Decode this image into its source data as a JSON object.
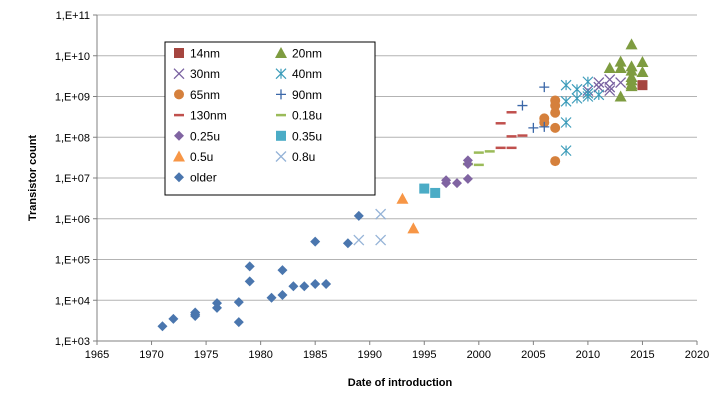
{
  "chart_data": {
    "type": "scatter",
    "xlabel": "Date of introduction",
    "ylabel": "Transistor count",
    "x_scale": "linear",
    "y_scale": "log",
    "xlim": [
      1965,
      2020
    ],
    "ylim": [
      1000,
      100000000000
    ],
    "x_ticks": [
      "1965",
      "1970",
      "1975",
      "1980",
      "1985",
      "1990",
      "1995",
      "2000",
      "2005",
      "2010",
      "2015",
      "2020"
    ],
    "y_ticks": [
      "1,E+03",
      "1,E+04",
      "1,E+05",
      "1,E+06",
      "1,E+07",
      "1,E+08",
      "1,E+09",
      "1,E+10",
      "1,E+11"
    ],
    "grid": "horizontal",
    "legend_position": "top-left",
    "series": [
      {
        "name": "14nm",
        "marker": "square",
        "color": "#A5453F",
        "points": [
          [
            2015,
            1900000000
          ]
        ]
      },
      {
        "name": "20nm",
        "marker": "triangle",
        "color": "#7E9C40",
        "points": [
          [
            2012,
            5000000000
          ],
          [
            2013,
            7200000000
          ],
          [
            2013,
            5000000000
          ],
          [
            2013,
            1000000000
          ],
          [
            2014,
            19000000000
          ],
          [
            2014,
            5500000000
          ],
          [
            2014,
            4300000000
          ],
          [
            2014,
            3000000000
          ],
          [
            2014,
            2500000000
          ],
          [
            2014,
            2000000000
          ],
          [
            2014,
            1800000000
          ],
          [
            2015,
            7000000000
          ],
          [
            2015,
            4000000000
          ]
        ]
      },
      {
        "name": "30nm",
        "marker": "x",
        "color": "#7860A0",
        "points": [
          [
            2010,
            1400000000
          ],
          [
            2011,
            2200000000
          ],
          [
            2011,
            1700000000
          ],
          [
            2012,
            2600000000
          ],
          [
            2012,
            1700000000
          ],
          [
            2012,
            1400000000
          ],
          [
            2013,
            2200000000
          ]
        ]
      },
      {
        "name": "40nm",
        "marker": "asterisk",
        "color": "#3C9CBA",
        "points": [
          [
            2008,
            1900000000
          ],
          [
            2008,
            760000000
          ],
          [
            2008,
            230000000
          ],
          [
            2008,
            47000000
          ],
          [
            2009,
            900000000
          ],
          [
            2009,
            1500000000
          ],
          [
            2010,
            2300000000
          ],
          [
            2010,
            1200000000
          ],
          [
            2010,
            1000000000
          ],
          [
            2011,
            1100000000
          ]
        ]
      },
      {
        "name": "65nm",
        "marker": "circle",
        "color": "#D5803C",
        "points": [
          [
            2006,
            290000000
          ],
          [
            2006,
            230000000
          ],
          [
            2007,
            800000000
          ],
          [
            2007,
            600000000
          ],
          [
            2007,
            400000000
          ],
          [
            2007,
            170000000
          ],
          [
            2007,
            26000000
          ]
        ]
      },
      {
        "name": "90nm",
        "marker": "plus",
        "color": "#3A67A8",
        "points": [
          [
            2004,
            600000000
          ],
          [
            2005,
            170000000
          ],
          [
            2006,
            1700000000
          ],
          [
            2006,
            180000000
          ]
        ]
      },
      {
        "name": "130nm",
        "marker": "dash",
        "color": "#C0504D",
        "points": [
          [
            2002,
            220000000
          ],
          [
            2002,
            55000000
          ],
          [
            2003,
            410000000
          ],
          [
            2003,
            105000000
          ],
          [
            2003,
            55000000
          ],
          [
            2004,
            110000000
          ]
        ]
      },
      {
        "name": "0.18u",
        "marker": "dash",
        "color": "#9BBB59",
        "points": [
          [
            1999,
            22000000
          ],
          [
            2000,
            21000000
          ],
          [
            2000,
            42000000
          ],
          [
            2001,
            45000000
          ]
        ]
      },
      {
        "name": "0.25u",
        "marker": "diamond",
        "color": "#8064A2",
        "points": [
          [
            1997,
            7500000
          ],
          [
            1997,
            8800000
          ],
          [
            1998,
            7500000
          ],
          [
            1999,
            9500000
          ],
          [
            1999,
            22000000
          ],
          [
            1999,
            27000000
          ]
        ]
      },
      {
        "name": "0.35u",
        "marker": "square",
        "color": "#4BACC6",
        "points": [
          [
            1995,
            5500000
          ],
          [
            1996,
            4300000
          ]
        ]
      },
      {
        "name": "0.5u",
        "marker": "triangle",
        "color": "#F79646",
        "points": [
          [
            1993,
            3100000
          ],
          [
            1994,
            580000
          ]
        ]
      },
      {
        "name": "0.8u",
        "marker": "x",
        "color": "#95B3D7",
        "points": [
          [
            1989,
            300000
          ],
          [
            1991,
            1300000
          ],
          [
            1991,
            300000
          ]
        ]
      },
      {
        "name": "older",
        "marker": "diamond",
        "color": "#4A76AE",
        "points": [
          [
            1971,
            2300
          ],
          [
            1972,
            3500
          ],
          [
            1974,
            5000
          ],
          [
            1974,
            4500
          ],
          [
            1974,
            4100
          ],
          [
            1976,
            8500
          ],
          [
            1976,
            6500
          ],
          [
            1978,
            9000
          ],
          [
            1978,
            2900
          ],
          [
            1979,
            68000
          ],
          [
            1979,
            29000
          ],
          [
            1981,
            11500
          ],
          [
            1982,
            55000
          ],
          [
            1982,
            13500
          ],
          [
            1983,
            22000
          ],
          [
            1984,
            22000
          ],
          [
            1985,
            275000
          ],
          [
            1985,
            25000
          ],
          [
            1986,
            25000
          ],
          [
            1988,
            250000
          ],
          [
            1989,
            1180000
          ]
        ]
      }
    ]
  }
}
